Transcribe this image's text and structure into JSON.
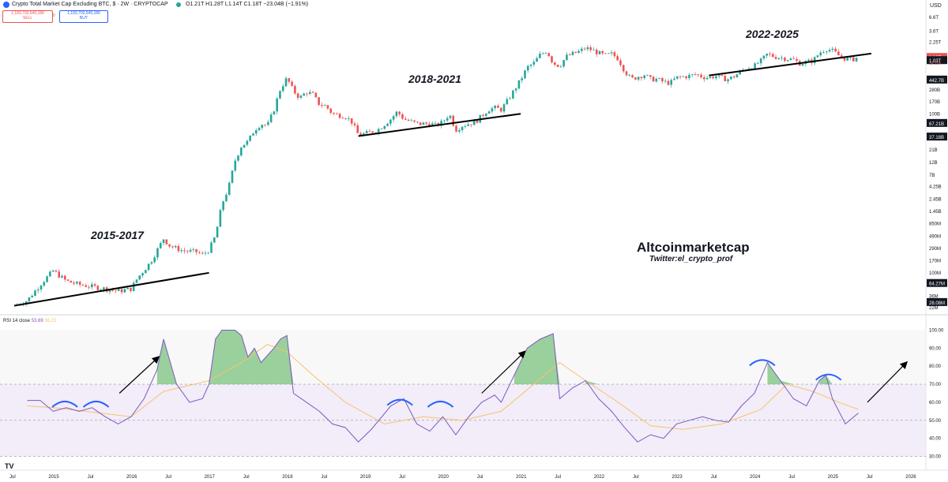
{
  "header": {
    "title": "Crypto Total Market Cap Excluding BTC, $ · 2W · CRYPTOCAP",
    "ohlc": "O1.21T H1.28T L1.14T C1.18T −23.04B (−1.91%)",
    "sell_value": "1,183,703,545,186",
    "sell_label": "SELL",
    "buy_value": "1,183,703,545,186",
    "buy_label": "BUY",
    "spread": "0",
    "currency": "USD"
  },
  "rsi_header": {
    "label": "RSI 14 close",
    "rsi_value": "53.69",
    "ma_value": "56.22"
  },
  "annotations": {
    "cycle1": "2015-2017",
    "cycle2": "2018-2021",
    "cycle3": "2022-2025",
    "brand": "Altcoinmarketcap",
    "handle": "Twitter:el_crypto_prof"
  },
  "chart_data": [
    {
      "type": "candlestick",
      "scale": "log",
      "y_unit": "USD",
      "y_ticks": [
        "6.6T",
        "3.6T",
        "2.25T",
        "1.18T",
        "1.03T",
        "442.7B",
        "280B",
        "170B",
        "100B",
        "67.21B",
        "37.18B",
        "21B",
        "12B",
        "7B",
        "4.25B",
        "2.45B",
        "1.45B",
        "850M",
        "490M",
        "290M",
        "170M",
        "100M",
        "64.27M",
        "36M",
        "28.08M",
        "22M"
      ],
      "y_ticks_highlight": [
        {
          "label": "1.18T",
          "color": "#ef5350"
        },
        {
          "label": "1.03T",
          "color": "#131722"
        },
        {
          "label": "442.7B",
          "color": "#131722"
        },
        {
          "label": "67.21B",
          "color": "#131722"
        },
        {
          "label": "37.18B",
          "color": "#131722"
        },
        {
          "label": "64.27M",
          "color": "#131722"
        },
        {
          "label": "28.08M",
          "color": "#131722"
        }
      ],
      "price_flag_sub": "3d 10h",
      "x_ticks": [
        "Jul",
        "2015",
        "Jul",
        "2016",
        "Jul",
        "2017",
        "Jul",
        "2018",
        "Jul",
        "2019",
        "Jul",
        "2020",
        "Jul",
        "2021",
        "Jul",
        "2022",
        "Jul",
        "2023",
        "Jul",
        "2024",
        "Jul",
        "2025",
        "Jul",
        "2026"
      ],
      "path": [
        [
          "2014-07",
          24
        ],
        [
          "2014-09",
          30
        ],
        [
          "2014-11",
          60
        ],
        [
          "2015-01",
          110
        ],
        [
          "2015-03",
          70
        ],
        [
          "2015-05",
          60
        ],
        [
          "2015-07",
          55
        ],
        [
          "2015-09",
          50
        ],
        [
          "2015-11",
          45
        ],
        [
          "2016-01",
          50
        ],
        [
          "2016-02",
          80
        ],
        [
          "2016-04",
          160
        ],
        [
          "2016-06",
          440
        ],
        [
          "2016-07",
          320
        ],
        [
          "2016-09",
          260
        ],
        [
          "2016-11",
          250
        ],
        [
          "2016-12",
          220
        ],
        [
          "2017-01",
          270
        ],
        [
          "2017-02",
          500
        ],
        [
          "2017-03",
          2000
        ],
        [
          "2017-04",
          4000
        ],
        [
          "2017-05",
          13000
        ],
        [
          "2017-06",
          25000
        ],
        [
          "2017-07",
          30000
        ],
        [
          "2017-08",
          50000
        ],
        [
          "2017-09",
          65000
        ],
        [
          "2017-10",
          60000
        ],
        [
          "2017-11",
          120000
        ],
        [
          "2017-12",
          300000
        ],
        [
          "2018-01",
          470000
        ],
        [
          "2018-02",
          270000
        ],
        [
          "2018-03",
          200000
        ],
        [
          "2018-04",
          260000
        ],
        [
          "2018-05",
          230000
        ],
        [
          "2018-06",
          150000
        ],
        [
          "2018-07",
          140000
        ],
        [
          "2018-08",
          100000
        ],
        [
          "2018-10",
          90000
        ],
        [
          "2018-11",
          70000
        ],
        [
          "2018-12",
          40000
        ],
        [
          "2019-01",
          42000
        ],
        [
          "2019-03",
          50000
        ],
        [
          "2019-05",
          80000
        ],
        [
          "2019-06",
          110000
        ],
        [
          "2019-07",
          80000
        ],
        [
          "2019-09",
          65000
        ],
        [
          "2019-11",
          65000
        ],
        [
          "2019-12",
          60000
        ],
        [
          "2020-01",
          70000
        ],
        [
          "2020-02",
          100000
        ],
        [
          "2020-03",
          50000
        ],
        [
          "2020-04",
          60000
        ],
        [
          "2020-05",
          65000
        ],
        [
          "2020-06",
          70000
        ],
        [
          "2020-08",
          120000
        ],
        [
          "2020-09",
          130000
        ],
        [
          "2020-10",
          120000
        ],
        [
          "2020-11",
          180000
        ],
        [
          "2020-12",
          280000
        ],
        [
          "2021-01",
          440000
        ],
        [
          "2021-02",
          750000
        ],
        [
          "2021-03",
          900000
        ],
        [
          "2021-04",
          1300000
        ],
        [
          "2021-05",
          1550000
        ],
        [
          "2021-06",
          900000
        ],
        [
          "2021-07",
          800000
        ],
        [
          "2021-08",
          1200000
        ],
        [
          "2021-09",
          1350000
        ],
        [
          "2021-10",
          1500000
        ],
        [
          "2021-11",
          1750000
        ],
        [
          "2021-12",
          1600000
        ],
        [
          "2022-01",
          1400000
        ],
        [
          "2022-02",
          1250000
        ],
        [
          "2022-03",
          1350000
        ],
        [
          "2022-04",
          1100000
        ],
        [
          "2022-05",
          650000
        ],
        [
          "2022-06",
          450000
        ],
        [
          "2022-07",
          500000
        ],
        [
          "2022-08",
          550000
        ],
        [
          "2022-09",
          450000
        ],
        [
          "2022-10",
          450000
        ],
        [
          "2022-11",
          400000
        ],
        [
          "2022-12",
          380000
        ],
        [
          "2023-01",
          480000
        ],
        [
          "2023-02",
          500000
        ],
        [
          "2023-03",
          520000
        ],
        [
          "2023-04",
          560000
        ],
        [
          "2023-05",
          500000
        ],
        [
          "2023-06",
          480000
        ],
        [
          "2023-07",
          520000
        ],
        [
          "2023-08",
          470000
        ],
        [
          "2023-09",
          450000
        ],
        [
          "2023-10",
          520000
        ],
        [
          "2023-11",
          650000
        ],
        [
          "2023-12",
          750000
        ],
        [
          "2024-01",
          800000
        ],
        [
          "2024-02",
          1000000
        ],
        [
          "2024-03",
          1350000
        ],
        [
          "2024-04",
          1200000
        ],
        [
          "2024-05",
          1150000
        ],
        [
          "2024-06",
          1100000
        ],
        [
          "2024-07",
          1050000
        ],
        [
          "2024-08",
          900000
        ],
        [
          "2024-09",
          950000
        ],
        [
          "2024-10",
          1000000
        ],
        [
          "2024-11",
          1400000
        ],
        [
          "2024-12",
          1700000
        ],
        [
          "2025-01",
          1550000
        ],
        [
          "2025-02",
          1250000
        ],
        [
          "2025-03",
          1100000
        ],
        [
          "2025-04",
          1050000
        ],
        [
          "2025-05",
          1180000
        ]
      ],
      "support_lines": [
        {
          "from": [
            "2014-07",
            24
          ],
          "to": [
            "2017-01",
            100
          ]
        },
        {
          "from": [
            "2018-12",
            38000
          ],
          "to": [
            "2021-01",
            100000
          ]
        },
        {
          "from": [
            "2023-06",
            530000
          ],
          "to": [
            "2025-07",
            1370000
          ]
        }
      ]
    },
    {
      "type": "line",
      "name": "RSI 14 close",
      "ylim": [
        25,
        105
      ],
      "y_ticks": [
        100,
        90,
        80,
        70,
        60,
        50,
        40,
        30
      ],
      "bands": [
        30,
        70
      ],
      "rsi": [
        [
          "2014-09",
          61
        ],
        [
          "2014-11",
          61
        ],
        [
          "2015-01",
          55
        ],
        [
          "2015-03",
          57
        ],
        [
          "2015-05",
          55
        ],
        [
          "2015-07",
          57
        ],
        [
          "2015-09",
          52
        ],
        [
          "2015-11",
          48
        ],
        [
          "2016-01",
          52
        ],
        [
          "2016-03",
          62
        ],
        [
          "2016-05",
          78
        ],
        [
          "2016-06",
          95
        ],
        [
          "2016-08",
          70
        ],
        [
          "2016-10",
          60
        ],
        [
          "2016-12",
          62
        ],
        [
          "2017-01",
          70
        ],
        [
          "2017-02",
          95
        ],
        [
          "2017-03",
          100
        ],
        [
          "2017-05",
          100
        ],
        [
          "2017-06",
          97
        ],
        [
          "2017-07",
          85
        ],
        [
          "2017-08",
          90
        ],
        [
          "2017-09",
          82
        ],
        [
          "2017-11",
          90
        ],
        [
          "2017-12",
          95
        ],
        [
          "2018-01",
          97
        ],
        [
          "2018-02",
          65
        ],
        [
          "2018-04",
          60
        ],
        [
          "2018-06",
          55
        ],
        [
          "2018-08",
          48
        ],
        [
          "2018-10",
          46
        ],
        [
          "2018-12",
          38
        ],
        [
          "2019-02",
          45
        ],
        [
          "2019-05",
          58
        ],
        [
          "2019-07",
          62
        ],
        [
          "2019-09",
          48
        ],
        [
          "2019-11",
          44
        ],
        [
          "2020-01",
          52
        ],
        [
          "2020-03",
          42
        ],
        [
          "2020-05",
          52
        ],
        [
          "2020-07",
          60
        ],
        [
          "2020-09",
          64
        ],
        [
          "2020-10",
          60
        ],
        [
          "2020-12",
          75
        ],
        [
          "2021-02",
          90
        ],
        [
          "2021-04",
          95
        ],
        [
          "2021-06",
          98
        ],
        [
          "2021-07",
          62
        ],
        [
          "2021-09",
          68
        ],
        [
          "2021-11",
          72
        ],
        [
          "2022-01",
          62
        ],
        [
          "2022-03",
          55
        ],
        [
          "2022-05",
          46
        ],
        [
          "2022-07",
          38
        ],
        [
          "2022-09",
          42
        ],
        [
          "2022-11",
          40
        ],
        [
          "2023-01",
          48
        ],
        [
          "2023-03",
          50
        ],
        [
          "2023-05",
          52
        ],
        [
          "2023-07",
          50
        ],
        [
          "2023-09",
          49
        ],
        [
          "2023-11",
          58
        ],
        [
          "2024-01",
          65
        ],
        [
          "2024-03",
          82
        ],
        [
          "2024-05",
          72
        ],
        [
          "2024-07",
          62
        ],
        [
          "2024-09",
          58
        ],
        [
          "2024-11",
          72
        ],
        [
          "2024-12",
          75
        ],
        [
          "2025-01",
          62
        ],
        [
          "2025-03",
          48
        ],
        [
          "2025-05",
          54
        ]
      ],
      "ma": [
        [
          "2014-09",
          58
        ],
        [
          "2015-01",
          57
        ],
        [
          "2015-06",
          55
        ],
        [
          "2016-01",
          52
        ],
        [
          "2016-06",
          66
        ],
        [
          "2017-01",
          72
        ],
        [
          "2017-06",
          82
        ],
        [
          "2017-10",
          92
        ],
        [
          "2018-01",
          88
        ],
        [
          "2018-05",
          75
        ],
        [
          "2018-10",
          60
        ],
        [
          "2019-04",
          48
        ],
        [
          "2019-10",
          52
        ],
        [
          "2020-04",
          50
        ],
        [
          "2020-10",
          55
        ],
        [
          "2021-03",
          70
        ],
        [
          "2021-07",
          82
        ],
        [
          "2021-11",
          72
        ],
        [
          "2022-04",
          60
        ],
        [
          "2022-09",
          47
        ],
        [
          "2023-02",
          45
        ],
        [
          "2023-08",
          48
        ],
        [
          "2024-02",
          56
        ],
        [
          "2024-06",
          70
        ],
        [
          "2024-10",
          66
        ],
        [
          "2025-02",
          60
        ],
        [
          "2025-05",
          56
        ]
      ]
    }
  ]
}
